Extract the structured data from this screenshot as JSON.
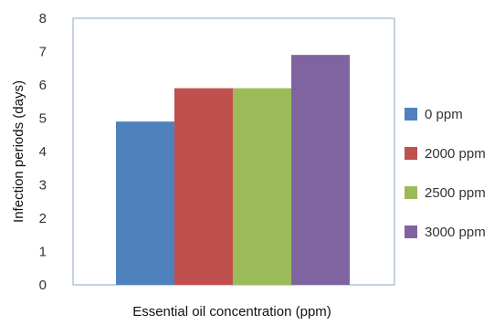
{
  "chart_data": {
    "type": "bar",
    "title": "",
    "xlabel": "Essential oil concentration (ppm)",
    "ylabel": "Infection periods (days)",
    "ylim": [
      0,
      8
    ],
    "yticks": [
      "0",
      "1",
      "2",
      "3",
      "4",
      "5",
      "6",
      "7",
      "8"
    ],
    "grid": false,
    "legend_position": "right",
    "categories": [
      ""
    ],
    "series": [
      {
        "name": "0 ppm",
        "values": [
          4.9
        ],
        "color": "#4F81BD"
      },
      {
        "name": "2000 ppm",
        "values": [
          5.9
        ],
        "color": "#C0504D"
      },
      {
        "name": "2500 ppm",
        "values": [
          5.9
        ],
        "color": "#9BBB59"
      },
      {
        "name": "3000 ppm",
        "values": [
          6.9
        ],
        "color": "#8064A2"
      }
    ]
  }
}
